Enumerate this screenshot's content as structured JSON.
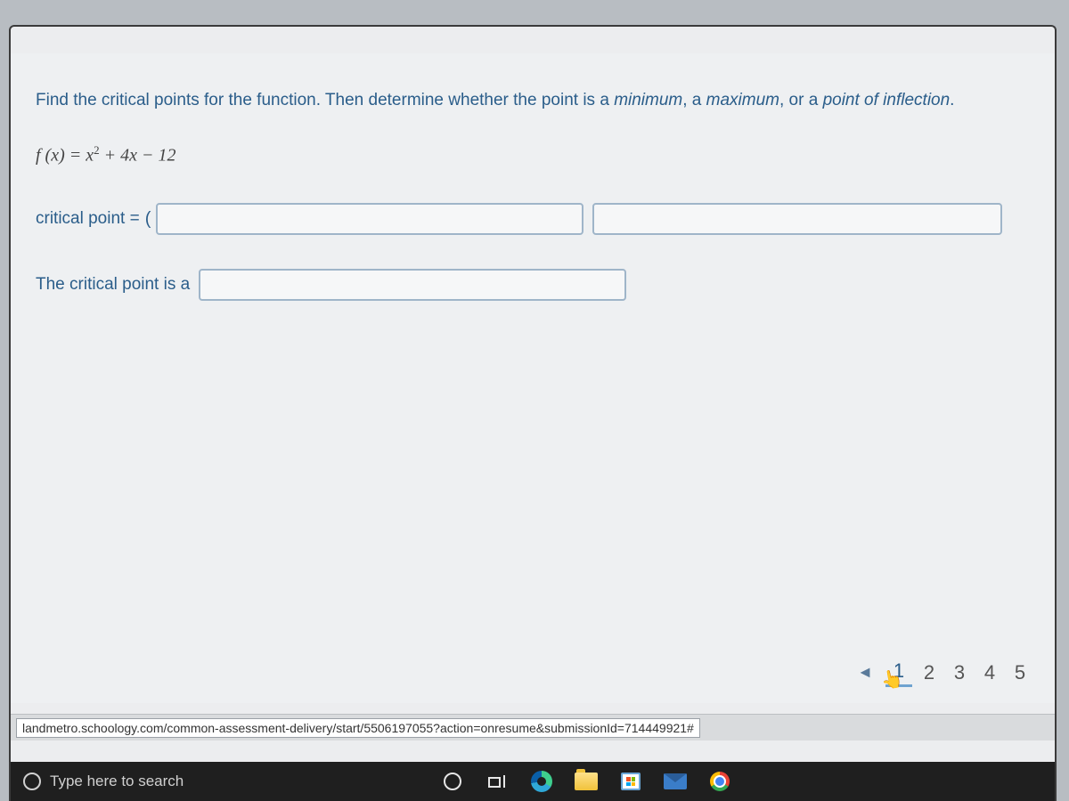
{
  "question": {
    "prompt_pre": "Find the critical points for the function.  Then determine whether the point is a ",
    "term_min": "minimum",
    "sep1": ", a ",
    "term_max": "maximum",
    "sep2": ", or a ",
    "term_infl": "point of inflection",
    "period": ".",
    "equation_lhs": "f (x) = ",
    "equation_rhs_a": "x",
    "equation_rhs_b": " + 4x − 12",
    "label_critical_point": "critical point = ",
    "paren_open": "(",
    "label_is_a": "The critical point is a"
  },
  "inputs": {
    "cp_x": "",
    "cp_y": "",
    "cp_type": ""
  },
  "pager": {
    "prev": "◄",
    "pages": [
      "1",
      "2",
      "3",
      "4",
      "5"
    ],
    "current_index": 0
  },
  "status": {
    "url": "landmetro.schoology.com/common-assessment-delivery/start/5506197055?action=onresume&submissionId=714449921#"
  },
  "taskbar": {
    "search_placeholder": "Type here to search"
  },
  "colors": {
    "bezel": "#b8bdc2",
    "panel": "#eef0f2",
    "link": "#2a5d8a",
    "input_border": "#9fb5c9",
    "taskbar_bg": "#1f1f1f"
  }
}
